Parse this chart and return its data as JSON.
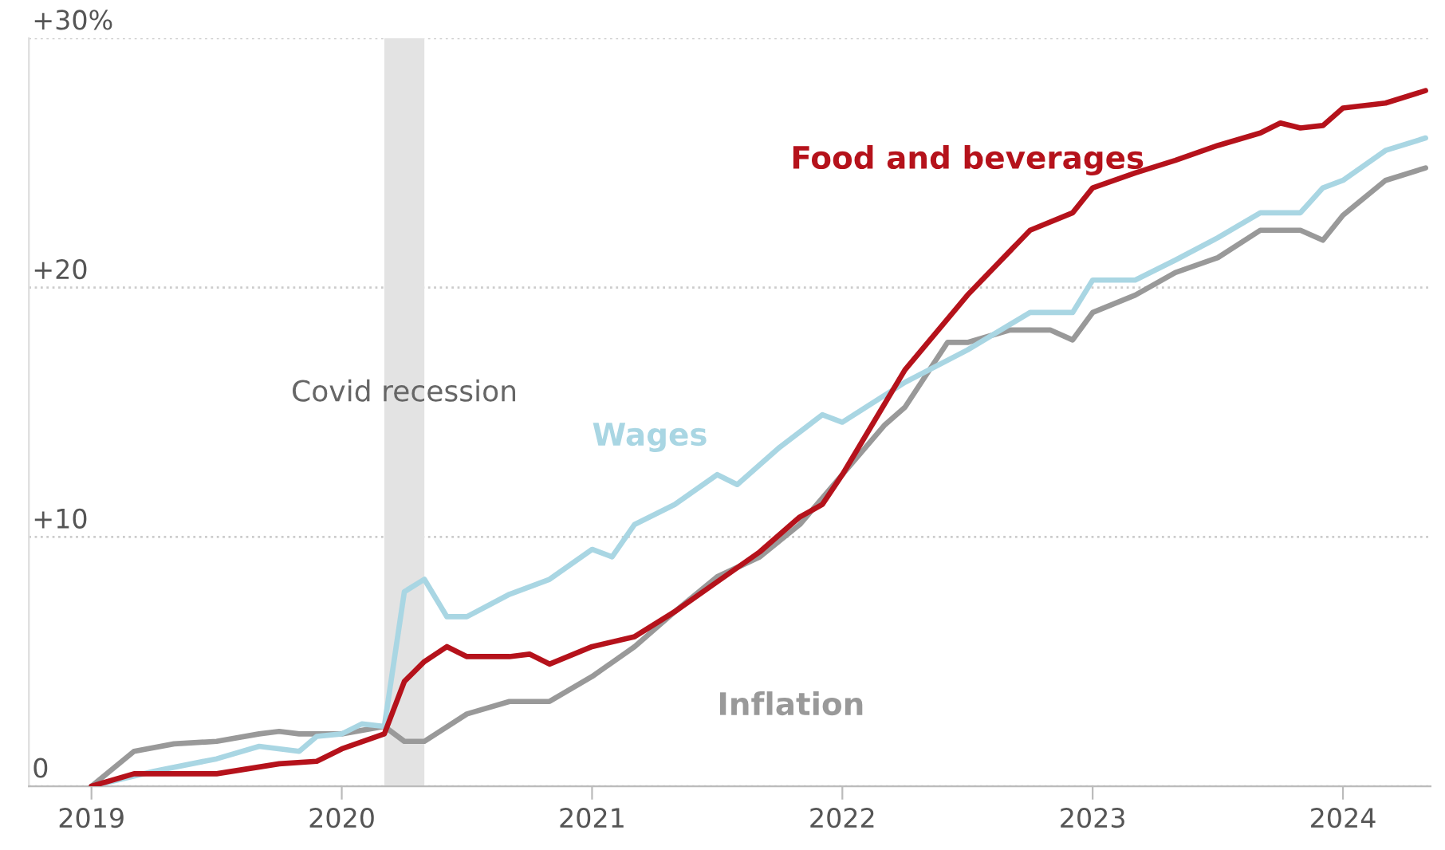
{
  "chart_data": {
    "type": "line",
    "xlim": [
      2018.75,
      2024.35
    ],
    "xticks": [
      2019,
      2020,
      2021,
      2022,
      2023,
      2024
    ],
    "ylim": [
      0,
      30
    ],
    "yticks": [
      {
        "value": 0,
        "label": "0"
      },
      {
        "value": 10,
        "label": "+10"
      },
      {
        "value": 20,
        "label": "+20"
      },
      {
        "value": 30,
        "label": "+30%"
      }
    ],
    "grid": "y",
    "legend": false,
    "line_style": "solid",
    "bands": [
      {
        "axis": "x",
        "from": 2020.17,
        "to": 2020.33,
        "label": "Covid recession",
        "color": "#e3e3e3"
      }
    ],
    "series": [
      {
        "name": "Inflation",
        "color": "#999999",
        "x": [
          2019.0,
          2019.17,
          2019.33,
          2019.5,
          2019.67,
          2019.75,
          2019.83,
          2020.0,
          2020.17,
          2020.25,
          2020.33,
          2020.5,
          2020.67,
          2020.83,
          2021.0,
          2021.17,
          2021.33,
          2021.5,
          2021.67,
          2021.83,
          2022.0,
          2022.17,
          2022.25,
          2022.42,
          2022.5,
          2022.67,
          2022.83,
          2022.92,
          2023.0,
          2023.17,
          2023.33,
          2023.5,
          2023.67,
          2023.83,
          2023.92,
          2024.0,
          2024.17,
          2024.33
        ],
        "values": [
          0,
          1.4,
          1.7,
          1.8,
          2.1,
          2.2,
          2.1,
          2.1,
          2.4,
          1.8,
          1.8,
          2.9,
          3.4,
          3.4,
          4.4,
          5.6,
          7.0,
          8.4,
          9.2,
          10.5,
          12.5,
          14.5,
          15.2,
          17.8,
          17.8,
          18.3,
          18.3,
          17.9,
          19.0,
          19.7,
          20.6,
          21.2,
          22.3,
          22.3,
          21.9,
          22.9,
          24.3,
          24.8
        ]
      },
      {
        "name": "Wages",
        "color": "#a9d6e3",
        "x": [
          2019.0,
          2019.25,
          2019.5,
          2019.67,
          2019.83,
          2019.9,
          2020.0,
          2020.08,
          2020.17,
          2020.25,
          2020.33,
          2020.42,
          2020.5,
          2020.67,
          2020.83,
          2021.0,
          2021.08,
          2021.17,
          2021.33,
          2021.5,
          2021.58,
          2021.75,
          2021.92,
          2022.0,
          2022.25,
          2022.5,
          2022.75,
          2022.92,
          2023.0,
          2023.17,
          2023.33,
          2023.5,
          2023.67,
          2023.83,
          2023.92,
          2024.0,
          2024.17,
          2024.33
        ],
        "values": [
          0,
          0.6,
          1.1,
          1.6,
          1.4,
          2.0,
          2.1,
          2.5,
          2.4,
          7.8,
          8.3,
          6.8,
          6.8,
          7.7,
          8.3,
          9.5,
          9.2,
          10.5,
          11.3,
          12.5,
          12.1,
          13.6,
          14.9,
          14.6,
          16.2,
          17.5,
          19.0,
          19.0,
          20.3,
          20.3,
          21.1,
          22.0,
          23.0,
          23.0,
          24.0,
          24.3,
          25.5,
          26.0
        ]
      },
      {
        "name": "Food and beverages",
        "color": "#b5121b",
        "x": [
          2019.0,
          2019.17,
          2019.5,
          2019.75,
          2019.9,
          2020.0,
          2020.17,
          2020.25,
          2020.33,
          2020.42,
          2020.5,
          2020.67,
          2020.75,
          2020.83,
          2021.0,
          2021.17,
          2021.33,
          2021.5,
          2021.67,
          2021.83,
          2021.92,
          2022.0,
          2022.25,
          2022.5,
          2022.75,
          2022.92,
          2023.0,
          2023.17,
          2023.33,
          2023.5,
          2023.67,
          2023.75,
          2023.83,
          2023.92,
          2024.0,
          2024.17,
          2024.33
        ],
        "values": [
          0,
          0.5,
          0.5,
          0.9,
          1.0,
          1.5,
          2.1,
          4.2,
          5.0,
          5.6,
          5.2,
          5.2,
          5.3,
          4.9,
          5.6,
          6.0,
          7.0,
          8.2,
          9.4,
          10.8,
          11.3,
          12.5,
          16.7,
          19.7,
          22.3,
          23.0,
          24.0,
          24.6,
          25.1,
          25.7,
          26.2,
          26.6,
          26.4,
          26.5,
          27.2,
          27.4,
          27.9
        ]
      }
    ]
  }
}
